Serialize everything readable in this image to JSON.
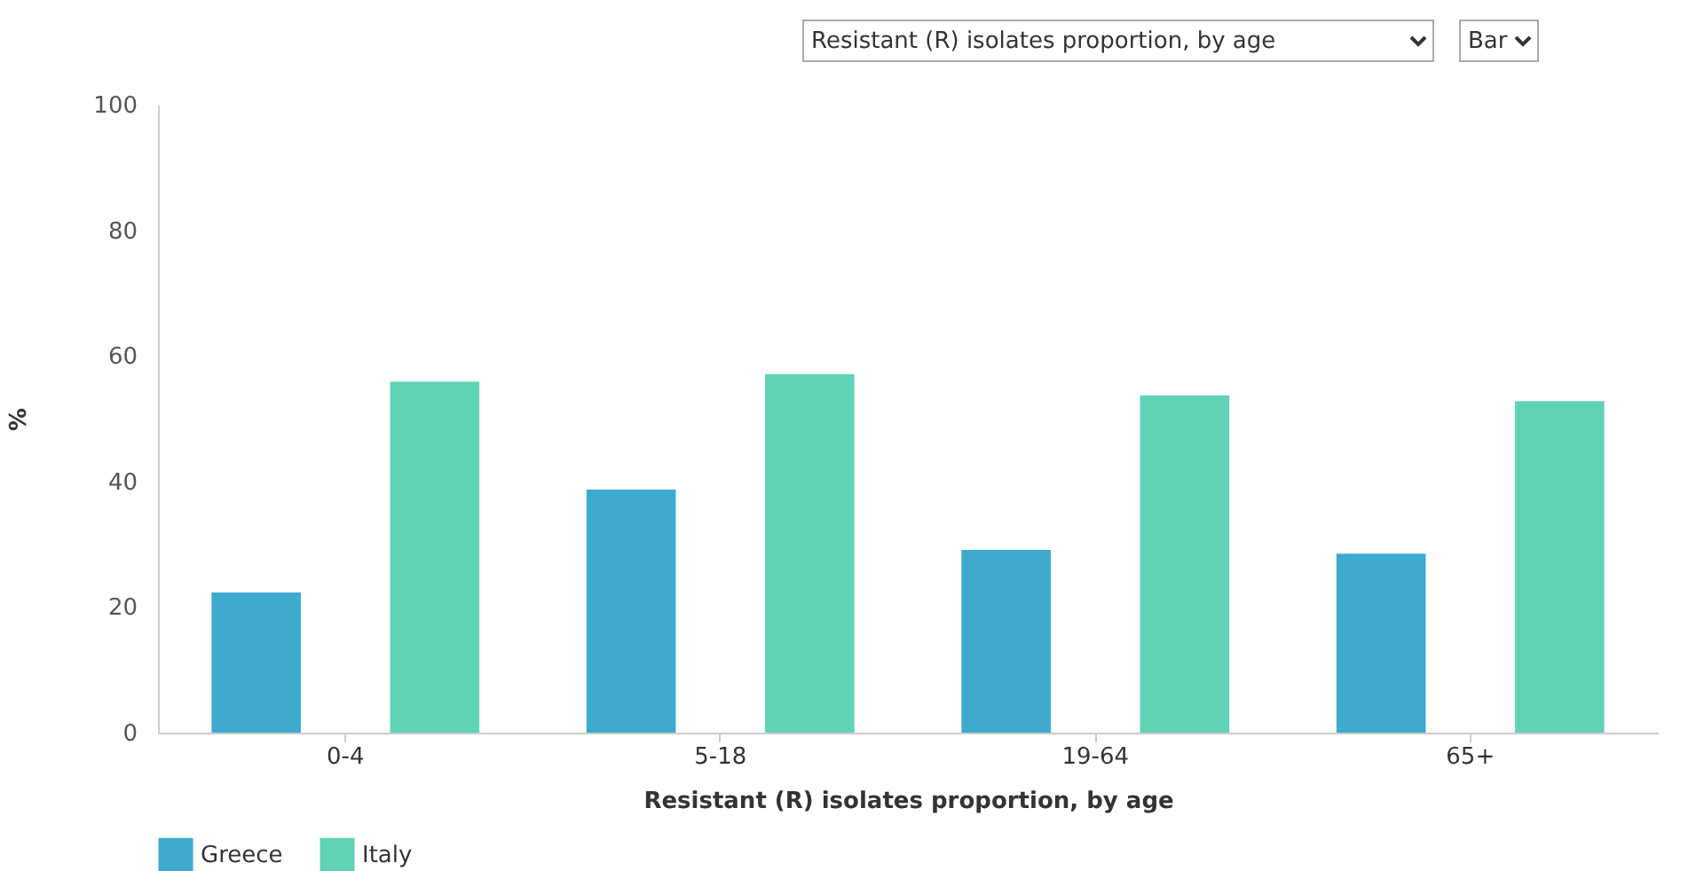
{
  "chart_data": {
    "type": "bar",
    "xlabel": "Resistant (R) isolates proportion, by age",
    "ylabel": "%",
    "annotations": [
      "Resistant (R) isolates proportion, by age",
      "Bar"
    ],
    "categories": [
      "0-4",
      "5-18",
      "19-64",
      "65+"
    ],
    "series": [
      {
        "name": "Greece",
        "color": "#3daacf",
        "values": [
          22.3,
          38.7,
          29.1,
          28.5
        ]
      },
      {
        "name": "Italy",
        "color": "#5fd3b5",
        "values": [
          55.9,
          57.1,
          53.7,
          52.8
        ]
      }
    ],
    "ylim": [
      0,
      100
    ],
    "yticks": [
      0,
      20,
      40,
      60,
      80,
      100
    ],
    "grid": false,
    "legend": "bottom left"
  }
}
